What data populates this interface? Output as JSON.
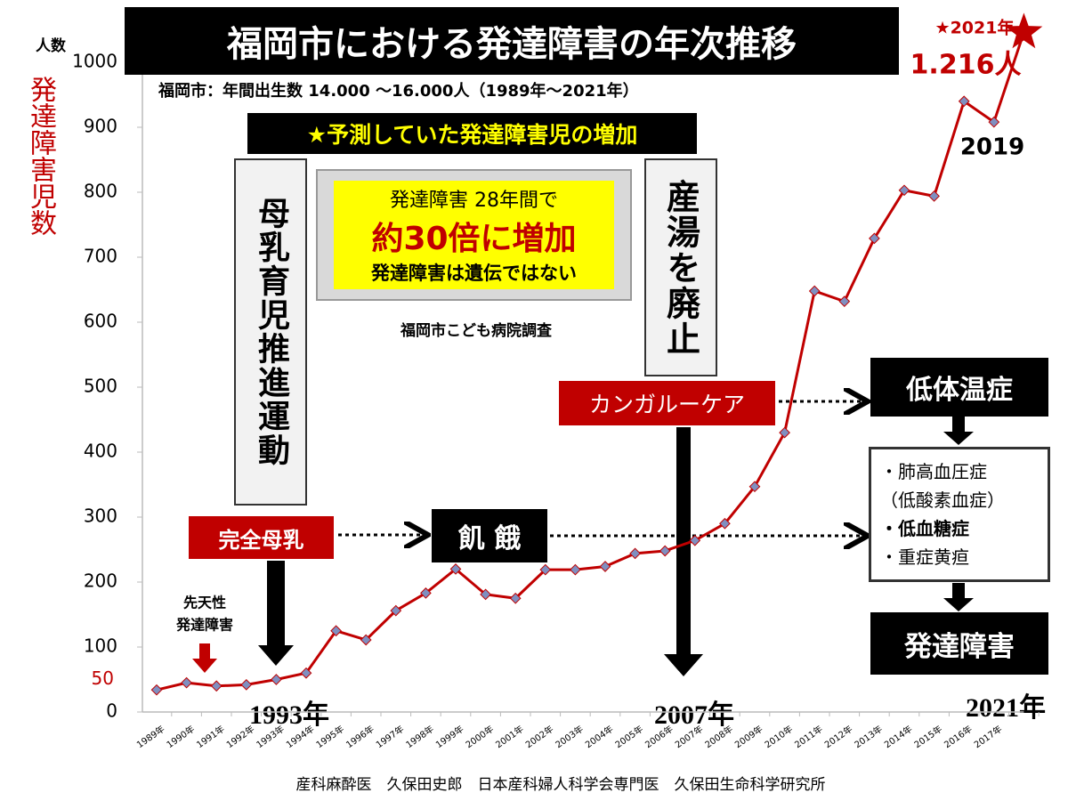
{
  "chart_data": {
    "type": "line",
    "title": "福岡市における発達障害の年次推移",
    "subtitle": "福岡市：年間出生数 14.000 〜16.000人（1989年〜2021年）",
    "y_label": "発達障害児数",
    "y_unit": "人数",
    "categories": [
      "1989年",
      "1990年",
      "1991年",
      "1992年",
      "1993年",
      "1994年",
      "1995年",
      "1996年",
      "1997年",
      "1998年",
      "1999年",
      "2000年",
      "2001年",
      "2002年",
      "2003年",
      "2004年",
      "2005年",
      "2006年",
      "2007年",
      "2008年",
      "2009年",
      "2010年",
      "2011年",
      "2012年",
      "2013年",
      "2014年",
      "2015年",
      "2016年",
      "2017年",
      null
    ],
    "values": [
      34,
      45,
      40,
      42,
      50,
      60,
      125,
      111,
      156,
      183,
      220,
      181,
      175,
      219,
      219,
      224,
      244,
      248,
      264,
      290,
      347,
      430,
      648,
      632,
      729,
      803,
      794,
      940,
      908,
      1046
    ],
    "color": "#c00000",
    "marker_color": "#7f8fc0",
    "ylim": [
      0,
      1050
    ],
    "yticks": [
      0,
      50,
      100,
      200,
      300,
      400,
      500,
      600,
      700,
      800,
      900,
      1000
    ],
    "grid": false,
    "annotations": {
      "forecast": "★予測していた発達障害児の増加",
      "increase": [
        "発達障害 28年間で",
        "約30倍に増加",
        "発達障害は遺伝ではない"
      ],
      "source": "福岡市こども病院調査",
      "breastfeeding_campaign": "母乳育児推進運動",
      "bath_abolished": "産湯を廃止",
      "exclusive_breastfeeding": "完全母乳",
      "starvation": "飢 餓",
      "kangaroo_care": "カンガルーケア",
      "hypothermia": "低体温症",
      "conditions": [
        "・肺高血圧症",
        "（低酸素血症）",
        "・低血糖症",
        "・重症黄疸"
      ],
      "developmental_disorder": "発達障害",
      "congenital": [
        "先天性",
        "発達障害"
      ],
      "year_1993": "1993年",
      "year_2007": "2007年",
      "year_2021": "2021年",
      "label_2019": "2019",
      "star_year": "★2021年",
      "star_value": "1.216人",
      "footer": "産科麻酔医　久保田史郎　日本産科婦人科学会専門医　久保田生命科学研究所"
    }
  }
}
